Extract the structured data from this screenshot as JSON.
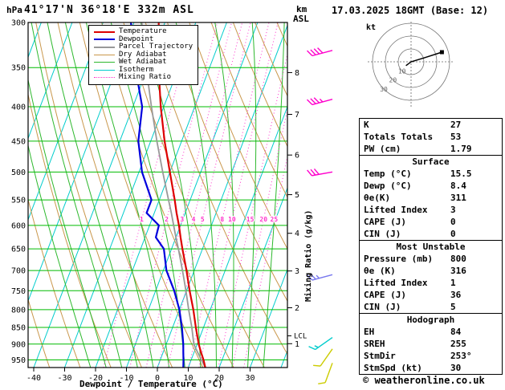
{
  "header": {
    "pressure_unit": "hPa",
    "station": "41°17'N 36°18'E 332m ASL",
    "altitude_unit_line1": "km",
    "altitude_unit_line2": "ASL",
    "datetime": "17.03.2025 18GMT (Base: 12)"
  },
  "axes": {
    "x_label": "Dewpoint / Temperature (°C)",
    "x_ticks": [
      -40,
      -30,
      -20,
      -10,
      0,
      10,
      20,
      30
    ],
    "pressure_ticks": [
      300,
      350,
      400,
      450,
      500,
      550,
      600,
      650,
      700,
      750,
      800,
      850,
      900,
      950
    ],
    "km_ticks": [
      1,
      2,
      3,
      4,
      5,
      6,
      7,
      8
    ],
    "lcl_label": "LCL",
    "mixing_ratio_axis_label": "Mixing Ratio (g/kg)",
    "mixing_ratio_values": [
      1,
      2,
      3,
      4,
      5,
      8,
      10,
      15,
      20,
      25
    ]
  },
  "legend": {
    "items": [
      {
        "label": "Temperature",
        "color": "#dd0000",
        "width": 2,
        "dash": false
      },
      {
        "label": "Dewpoint",
        "color": "#0000dd",
        "width": 2,
        "dash": false
      },
      {
        "label": "Parcel Trajectory",
        "color": "#999999",
        "width": 2,
        "dash": false
      },
      {
        "label": "Dry Adiabat",
        "color": "#c9974b",
        "width": 1,
        "dash": false
      },
      {
        "label": "Wet Adiabat",
        "color": "#2db82d",
        "width": 1,
        "dash": false
      },
      {
        "label": "Isotherm",
        "color": "#00cccc",
        "width": 1,
        "dash": false
      },
      {
        "label": "Mixing Ratio",
        "color": "#ff33cc",
        "width": 1,
        "dash": true
      }
    ]
  },
  "chart_data": {
    "type": "skewt-logp",
    "pressure_range_hPa": [
      300,
      975
    ],
    "temp_range_at_surface_C": [
      -46,
      38
    ],
    "lcl_pressure_hPa": 875,
    "profiles": {
      "pressure_hPa": [
        975,
        950,
        925,
        900,
        850,
        800,
        750,
        700,
        650,
        625,
        600,
        575,
        550,
        500,
        450,
        400,
        350,
        300
      ],
      "temperature_C": [
        15.5,
        14.0,
        12.2,
        10.5,
        7.5,
        4.5,
        1.0,
        -2.5,
        -6.5,
        -8.5,
        -10.5,
        -12.8,
        -15.0,
        -20.0,
        -25.5,
        -31.0,
        -36.5,
        -42.0
      ],
      "dewpoint_C": [
        8.4,
        7.5,
        6.5,
        5.5,
        3.0,
        0.0,
        -4.0,
        -9.0,
        -12.5,
        -16.5,
        -17.0,
        -22.5,
        -22.5,
        -29.0,
        -34.0,
        -37.0,
        -44.0,
        -51.0
      ],
      "parcel_C": [
        15.5,
        13.3,
        11.1,
        8.9,
        6.2,
        3.0,
        -0.2,
        -3.8,
        -7.8,
        -10.0,
        -12.2,
        -14.5,
        -17.0,
        -22.3,
        -28.0,
        -34.0,
        -40.5,
        -47.5
      ]
    },
    "winds": [
      {
        "pressure_hPa": 330,
        "color": "#ff00cc",
        "speed_kt": 40,
        "dir_deg": 255
      },
      {
        "pressure_hPa": 390,
        "color": "#ff00cc",
        "speed_kt": 35,
        "dir_deg": 255
      },
      {
        "pressure_hPa": 500,
        "color": "#ff00cc",
        "speed_kt": 30,
        "dir_deg": 260
      },
      {
        "pressure_hPa": 710,
        "color": "#7777ee",
        "speed_kt": 25,
        "dir_deg": 255
      },
      {
        "pressure_hPa": 880,
        "color": "#00cccc",
        "speed_kt": 15,
        "dir_deg": 235
      },
      {
        "pressure_hPa": 915,
        "color": "#cccc00",
        "speed_kt": 10,
        "dir_deg": 215
      },
      {
        "pressure_hPa": 960,
        "color": "#cccc00",
        "speed_kt": 10,
        "dir_deg": 200
      }
    ],
    "hodograph": {
      "unit_label": "kt",
      "ring_radii_kt": [
        10,
        20,
        30
      ],
      "ring_labels": [
        "10",
        "20",
        "30"
      ],
      "trace_uv_kt": [
        [
          -4,
          -3
        ],
        [
          0,
          0
        ],
        [
          10,
          3
        ],
        [
          24,
          7.5
        ]
      ]
    }
  },
  "stats": {
    "top": [
      {
        "label": "K",
        "value": "27"
      },
      {
        "label": "Totals Totals",
        "value": "53"
      },
      {
        "label": "PW (cm)",
        "value": "1.79"
      }
    ],
    "sections": [
      {
        "title": "Surface",
        "rows": [
          {
            "label": "Temp (°C)",
            "value": "15.5"
          },
          {
            "label": "Dewp (°C)",
            "value": "8.4"
          },
          {
            "label": "θe(K)",
            "value": "311"
          },
          {
            "label": "Lifted Index",
            "value": "3"
          },
          {
            "label": "CAPE (J)",
            "value": "0"
          },
          {
            "label": "CIN (J)",
            "value": "0"
          }
        ]
      },
      {
        "title": "Most Unstable",
        "rows": [
          {
            "label": "Pressure (mb)",
            "value": "800"
          },
          {
            "label": "θe (K)",
            "value": "316"
          },
          {
            "label": "Lifted Index",
            "value": "1"
          },
          {
            "label": "CAPE (J)",
            "value": "36"
          },
          {
            "label": "CIN (J)",
            "value": "5"
          }
        ]
      },
      {
        "title": "Hodograph",
        "rows": [
          {
            "label": "EH",
            "value": "84"
          },
          {
            "label": "SREH",
            "value": "255"
          },
          {
            "label": "StmDir",
            "value": "253°"
          },
          {
            "label": "StmSpd (kt)",
            "value": "30"
          }
        ]
      }
    ]
  },
  "footer": {
    "copyright": "© weatheronline.co.uk"
  }
}
